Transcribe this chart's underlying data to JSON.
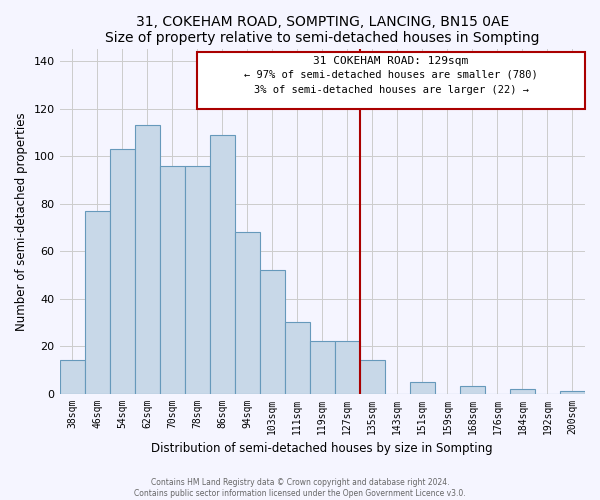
{
  "title": "31, COKEHAM ROAD, SOMPTING, LANCING, BN15 0AE",
  "subtitle": "Size of property relative to semi-detached houses in Sompting",
  "xlabel": "Distribution of semi-detached houses by size in Sompting",
  "ylabel": "Number of semi-detached properties",
  "bar_labels": [
    "38sqm",
    "46sqm",
    "54sqm",
    "62sqm",
    "70sqm",
    "78sqm",
    "86sqm",
    "94sqm",
    "103sqm",
    "111sqm",
    "119sqm",
    "127sqm",
    "135sqm",
    "143sqm",
    "151sqm",
    "159sqm",
    "168sqm",
    "176sqm",
    "184sqm",
    "192sqm",
    "200sqm"
  ],
  "bar_values": [
    14,
    77,
    103,
    113,
    96,
    96,
    109,
    68,
    52,
    30,
    22,
    22,
    14,
    0,
    5,
    0,
    3,
    0,
    2,
    0,
    1
  ],
  "bar_color": "#c8d8e8",
  "bar_edge_color": "#6699bb",
  "annotation_box_title": "31 COKEHAM ROAD: 129sqm",
  "annotation_smaller_pct": "97%",
  "annotation_smaller_count": "780",
  "annotation_larger_pct": "3%",
  "annotation_larger_count": "22",
  "vline_color": "#aa0000",
  "ylim": [
    0,
    145
  ],
  "yticks": [
    0,
    20,
    40,
    60,
    80,
    100,
    120,
    140
  ],
  "footer_line1": "Contains HM Land Registry data © Crown copyright and database right 2024.",
  "footer_line2": "Contains public sector information licensed under the Open Government Licence v3.0.",
  "bg_color": "#f5f5ff"
}
